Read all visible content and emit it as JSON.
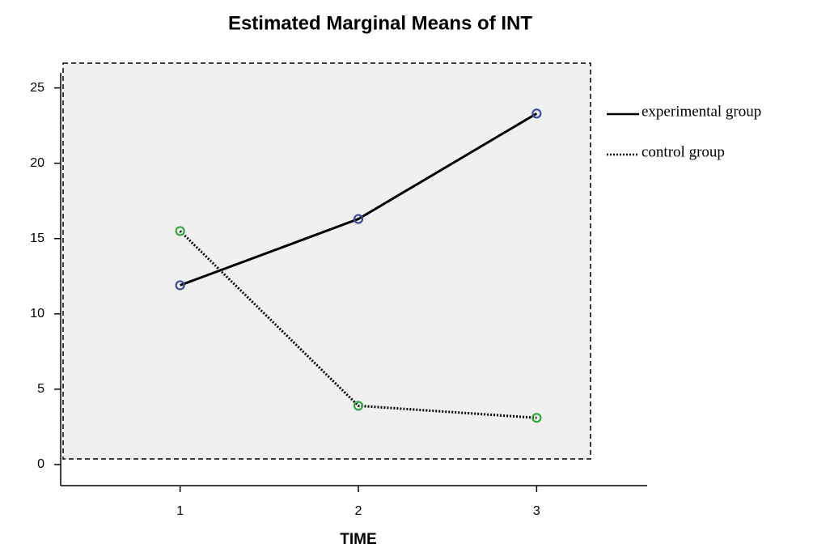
{
  "chart_data": {
    "type": "line",
    "title": "Estimated Marginal Means of INT",
    "x_label": "TIME",
    "x": [
      1,
      2,
      3
    ],
    "xlim": [
      0.33,
      3.62
    ],
    "xticks": [
      1,
      2,
      3
    ],
    "ylim": [
      -1.4,
      26
    ],
    "yticks": [
      0,
      5,
      10,
      15,
      20,
      25
    ],
    "legend": "right",
    "series": [
      {
        "name": "experimental group",
        "color": "#000000",
        "marker_color": "#3a4a9c",
        "dash": "solid",
        "values": [
          11.9,
          16.3,
          23.3
        ]
      },
      {
        "name": "control group",
        "color": "#000000",
        "marker_color": "#2ea83a",
        "dash": "dotted",
        "values": [
          15.5,
          3.9,
          3.1
        ]
      }
    ]
  }
}
